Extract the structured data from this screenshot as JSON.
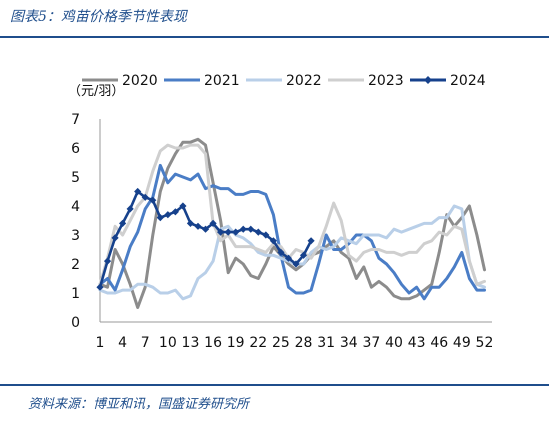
{
  "figure": {
    "title": "图表5：鸡苗价格季节性表现",
    "source": "资料来源：博亚和讯，国盛证券研究所"
  },
  "colors": {
    "frame_rule": "#1f4e8c",
    "2020": "#8c8c8c",
    "2021": "#4a7dc6",
    "2022": "#b9cfe8",
    "2023": "#cfcfcf",
    "2024": "#16418c"
  },
  "chart_data": {
    "type": "line",
    "unit_label": "（元/羽）",
    "ylim": [
      0,
      7
    ],
    "yticks": [
      0,
      1,
      2,
      3,
      4,
      5,
      6,
      7
    ],
    "xlim": [
      1,
      53
    ],
    "xticks": [
      1,
      4,
      7,
      10,
      13,
      16,
      19,
      22,
      25,
      28,
      31,
      34,
      37,
      40,
      43,
      46,
      49,
      52
    ],
    "grid": false,
    "legend_position": "top",
    "series": [
      {
        "name": "2020",
        "marker": "none",
        "values": [
          {
            "x": 1,
            "y": 1.3
          },
          {
            "x": 2,
            "y": 1.2
          },
          {
            "x": 3,
            "y": 2.5
          },
          {
            "x": 4,
            "y": 2.0
          },
          {
            "x": 5,
            "y": 1.3
          },
          {
            "x": 6,
            "y": 0.5
          },
          {
            "x": 7,
            "y": 1.2
          },
          {
            "x": 8,
            "y": 3.0
          },
          {
            "x": 9,
            "y": 4.5
          },
          {
            "x": 10,
            "y": 5.3
          },
          {
            "x": 11,
            "y": 5.8
          },
          {
            "x": 12,
            "y": 6.2
          },
          {
            "x": 13,
            "y": 6.2
          },
          {
            "x": 14,
            "y": 6.3
          },
          {
            "x": 15,
            "y": 6.1
          },
          {
            "x": 16,
            "y": 4.8
          },
          {
            "x": 17,
            "y": 3.5
          },
          {
            "x": 18,
            "y": 1.7
          },
          {
            "x": 19,
            "y": 2.2
          },
          {
            "x": 20,
            "y": 2.0
          },
          {
            "x": 21,
            "y": 1.6
          },
          {
            "x": 22,
            "y": 1.5
          },
          {
            "x": 23,
            "y": 2.0
          },
          {
            "x": 24,
            "y": 2.6
          },
          {
            "x": 25,
            "y": 2.3
          },
          {
            "x": 26,
            "y": 2.0
          },
          {
            "x": 27,
            "y": 1.8
          },
          {
            "x": 28,
            "y": 2.0
          },
          {
            "x": 29,
            "y": 2.3
          },
          {
            "x": 30,
            "y": 2.4
          },
          {
            "x": 31,
            "y": 2.6
          },
          {
            "x": 32,
            "y": 2.8
          },
          {
            "x": 33,
            "y": 2.4
          },
          {
            "x": 34,
            "y": 2.2
          },
          {
            "x": 35,
            "y": 1.5
          },
          {
            "x": 36,
            "y": 1.9
          },
          {
            "x": 37,
            "y": 1.2
          },
          {
            "x": 38,
            "y": 1.4
          },
          {
            "x": 39,
            "y": 1.2
          },
          {
            "x": 40,
            "y": 0.9
          },
          {
            "x": 41,
            "y": 0.8
          },
          {
            "x": 42,
            "y": 0.8
          },
          {
            "x": 43,
            "y": 0.9
          },
          {
            "x": 44,
            "y": 1.1
          },
          {
            "x": 45,
            "y": 1.3
          },
          {
            "x": 46,
            "y": 2.4
          },
          {
            "x": 47,
            "y": 3.7
          },
          {
            "x": 48,
            "y": 3.3
          },
          {
            "x": 49,
            "y": 3.6
          },
          {
            "x": 50,
            "y": 4.0
          },
          {
            "x": 51,
            "y": 3.0
          },
          {
            "x": 52,
            "y": 1.8
          }
        ]
      },
      {
        "name": "2021",
        "marker": "none",
        "values": [
          {
            "x": 1,
            "y": 1.3
          },
          {
            "x": 2,
            "y": 1.5
          },
          {
            "x": 3,
            "y": 1.1
          },
          {
            "x": 4,
            "y": 1.8
          },
          {
            "x": 5,
            "y": 2.6
          },
          {
            "x": 6,
            "y": 3.1
          },
          {
            "x": 7,
            "y": 3.9
          },
          {
            "x": 8,
            "y": 4.3
          },
          {
            "x": 9,
            "y": 5.4
          },
          {
            "x": 10,
            "y": 4.8
          },
          {
            "x": 11,
            "y": 5.1
          },
          {
            "x": 12,
            "y": 5.0
          },
          {
            "x": 13,
            "y": 4.9
          },
          {
            "x": 14,
            "y": 5.1
          },
          {
            "x": 15,
            "y": 4.6
          },
          {
            "x": 16,
            "y": 4.7
          },
          {
            "x": 17,
            "y": 4.6
          },
          {
            "x": 18,
            "y": 4.6
          },
          {
            "x": 19,
            "y": 4.4
          },
          {
            "x": 20,
            "y": 4.4
          },
          {
            "x": 21,
            "y": 4.5
          },
          {
            "x": 22,
            "y": 4.5
          },
          {
            "x": 23,
            "y": 4.4
          },
          {
            "x": 24,
            "y": 3.7
          },
          {
            "x": 25,
            "y": 2.3
          },
          {
            "x": 26,
            "y": 1.2
          },
          {
            "x": 27,
            "y": 1.0
          },
          {
            "x": 28,
            "y": 1.0
          },
          {
            "x": 29,
            "y": 1.1
          },
          {
            "x": 30,
            "y": 2.0
          },
          {
            "x": 31,
            "y": 3.0
          },
          {
            "x": 32,
            "y": 2.5
          },
          {
            "x": 33,
            "y": 2.5
          },
          {
            "x": 34,
            "y": 2.7
          },
          {
            "x": 35,
            "y": 3.0
          },
          {
            "x": 36,
            "y": 3.0
          },
          {
            "x": 37,
            "y": 2.8
          },
          {
            "x": 38,
            "y": 2.2
          },
          {
            "x": 39,
            "y": 2.0
          },
          {
            "x": 40,
            "y": 1.7
          },
          {
            "x": 41,
            "y": 1.3
          },
          {
            "x": 42,
            "y": 1.0
          },
          {
            "x": 43,
            "y": 1.2
          },
          {
            "x": 44,
            "y": 0.8
          },
          {
            "x": 45,
            "y": 1.2
          },
          {
            "x": 46,
            "y": 1.2
          },
          {
            "x": 47,
            "y": 1.5
          },
          {
            "x": 48,
            "y": 1.9
          },
          {
            "x": 49,
            "y": 2.4
          },
          {
            "x": 50,
            "y": 1.5
          },
          {
            "x": 51,
            "y": 1.1
          },
          {
            "x": 52,
            "y": 1.1
          }
        ]
      },
      {
        "name": "2022",
        "marker": "none",
        "values": [
          {
            "x": 1,
            "y": 1.1
          },
          {
            "x": 2,
            "y": 1.0
          },
          {
            "x": 3,
            "y": 1.0
          },
          {
            "x": 4,
            "y": 1.1
          },
          {
            "x": 5,
            "y": 1.1
          },
          {
            "x": 6,
            "y": 1.3
          },
          {
            "x": 7,
            "y": 1.3
          },
          {
            "x": 8,
            "y": 1.2
          },
          {
            "x": 9,
            "y": 1.0
          },
          {
            "x": 10,
            "y": 1.0
          },
          {
            "x": 11,
            "y": 1.1
          },
          {
            "x": 12,
            "y": 0.8
          },
          {
            "x": 13,
            "y": 0.9
          },
          {
            "x": 14,
            "y": 1.5
          },
          {
            "x": 15,
            "y": 1.7
          },
          {
            "x": 16,
            "y": 2.1
          },
          {
            "x": 17,
            "y": 3.2
          },
          {
            "x": 18,
            "y": 3.3
          },
          {
            "x": 19,
            "y": 3.0
          },
          {
            "x": 20,
            "y": 2.9
          },
          {
            "x": 21,
            "y": 2.7
          },
          {
            "x": 22,
            "y": 2.4
          },
          {
            "x": 23,
            "y": 2.3
          },
          {
            "x": 24,
            "y": 2.3
          },
          {
            "x": 25,
            "y": 2.2
          },
          {
            "x": 26,
            "y": 2.1
          },
          {
            "x": 27,
            "y": 2.0
          },
          {
            "x": 28,
            "y": 2.0
          },
          {
            "x": 29,
            "y": 2.4
          },
          {
            "x": 30,
            "y": 2.6
          },
          {
            "x": 31,
            "y": 2.5
          },
          {
            "x": 32,
            "y": 2.6
          },
          {
            "x": 33,
            "y": 2.9
          },
          {
            "x": 34,
            "y": 2.8
          },
          {
            "x": 35,
            "y": 2.7
          },
          {
            "x": 36,
            "y": 3.0
          },
          {
            "x": 37,
            "y": 3.0
          },
          {
            "x": 38,
            "y": 3.0
          },
          {
            "x": 39,
            "y": 2.9
          },
          {
            "x": 40,
            "y": 3.2
          },
          {
            "x": 41,
            "y": 3.1
          },
          {
            "x": 42,
            "y": 3.2
          },
          {
            "x": 43,
            "y": 3.3
          },
          {
            "x": 44,
            "y": 3.4
          },
          {
            "x": 45,
            "y": 3.4
          },
          {
            "x": 46,
            "y": 3.6
          },
          {
            "x": 47,
            "y": 3.6
          },
          {
            "x": 48,
            "y": 4.0
          },
          {
            "x": 49,
            "y": 3.9
          },
          {
            "x": 50,
            "y": 2.1
          },
          {
            "x": 51,
            "y": 1.3
          },
          {
            "x": 52,
            "y": 1.2
          }
        ]
      },
      {
        "name": "2023",
        "marker": "none",
        "values": [
          {
            "x": 1,
            "y": 1.3
          },
          {
            "x": 2,
            "y": 2.2
          },
          {
            "x": 3,
            "y": 3.3
          },
          {
            "x": 4,
            "y": 3.0
          },
          {
            "x": 5,
            "y": 3.5
          },
          {
            "x": 6,
            "y": 4.0
          },
          {
            "x": 7,
            "y": 4.3
          },
          {
            "x": 8,
            "y": 5.2
          },
          {
            "x": 9,
            "y": 5.9
          },
          {
            "x": 10,
            "y": 6.1
          },
          {
            "x": 11,
            "y": 6.0
          },
          {
            "x": 12,
            "y": 6.0
          },
          {
            "x": 13,
            "y": 6.1
          },
          {
            "x": 14,
            "y": 6.1
          },
          {
            "x": 15,
            "y": 5.8
          },
          {
            "x": 16,
            "y": 3.4
          },
          {
            "x": 17,
            "y": 2.8
          },
          {
            "x": 18,
            "y": 3.0
          },
          {
            "x": 19,
            "y": 2.6
          },
          {
            "x": 20,
            "y": 2.6
          },
          {
            "x": 21,
            "y": 2.6
          },
          {
            "x": 22,
            "y": 2.5
          },
          {
            "x": 23,
            "y": 2.4
          },
          {
            "x": 24,
            "y": 2.7
          },
          {
            "x": 25,
            "y": 2.6
          },
          {
            "x": 26,
            "y": 2.2
          },
          {
            "x": 27,
            "y": 2.5
          },
          {
            "x": 28,
            "y": 2.4
          },
          {
            "x": 29,
            "y": 2.2
          },
          {
            "x": 30,
            "y": 2.6
          },
          {
            "x": 31,
            "y": 3.3
          },
          {
            "x": 32,
            "y": 4.1
          },
          {
            "x": 33,
            "y": 3.5
          },
          {
            "x": 34,
            "y": 2.3
          },
          {
            "x": 35,
            "y": 2.1
          },
          {
            "x": 36,
            "y": 2.4
          },
          {
            "x": 37,
            "y": 2.5
          },
          {
            "x": 38,
            "y": 2.5
          },
          {
            "x": 39,
            "y": 2.4
          },
          {
            "x": 40,
            "y": 2.4
          },
          {
            "x": 41,
            "y": 2.3
          },
          {
            "x": 42,
            "y": 2.4
          },
          {
            "x": 43,
            "y": 2.4
          },
          {
            "x": 44,
            "y": 2.7
          },
          {
            "x": 45,
            "y": 2.8
          },
          {
            "x": 46,
            "y": 3.1
          },
          {
            "x": 47,
            "y": 3.0
          },
          {
            "x": 48,
            "y": 3.3
          },
          {
            "x": 49,
            "y": 3.2
          },
          {
            "x": 50,
            "y": 2.1
          },
          {
            "x": 51,
            "y": 1.3
          },
          {
            "x": 52,
            "y": 1.4
          }
        ]
      },
      {
        "name": "2024",
        "marker": "diamond",
        "values": [
          {
            "x": 1,
            "y": 1.2
          },
          {
            "x": 2,
            "y": 2.1
          },
          {
            "x": 3,
            "y": 2.9
          },
          {
            "x": 4,
            "y": 3.4
          },
          {
            "x": 5,
            "y": 3.9
          },
          {
            "x": 6,
            "y": 4.5
          },
          {
            "x": 7,
            "y": 4.3
          },
          {
            "x": 8,
            "y": 4.2
          },
          {
            "x": 9,
            "y": 3.6
          },
          {
            "x": 10,
            "y": 3.7
          },
          {
            "x": 11,
            "y": 3.8
          },
          {
            "x": 12,
            "y": 4.0
          },
          {
            "x": 13,
            "y": 3.4
          },
          {
            "x": 14,
            "y": 3.3
          },
          {
            "x": 15,
            "y": 3.2
          },
          {
            "x": 16,
            "y": 3.4
          },
          {
            "x": 17,
            "y": 3.1
          },
          {
            "x": 18,
            "y": 3.1
          },
          {
            "x": 19,
            "y": 3.1
          },
          {
            "x": 20,
            "y": 3.2
          },
          {
            "x": 21,
            "y": 3.2
          },
          {
            "x": 22,
            "y": 3.1
          },
          {
            "x": 23,
            "y": 3.0
          },
          {
            "x": 24,
            "y": 2.8
          },
          {
            "x": 25,
            "y": 2.4
          },
          {
            "x": 26,
            "y": 2.2
          },
          {
            "x": 27,
            "y": 2.0
          },
          {
            "x": 28,
            "y": 2.3
          },
          {
            "x": 29,
            "y": 2.8
          }
        ]
      }
    ]
  }
}
